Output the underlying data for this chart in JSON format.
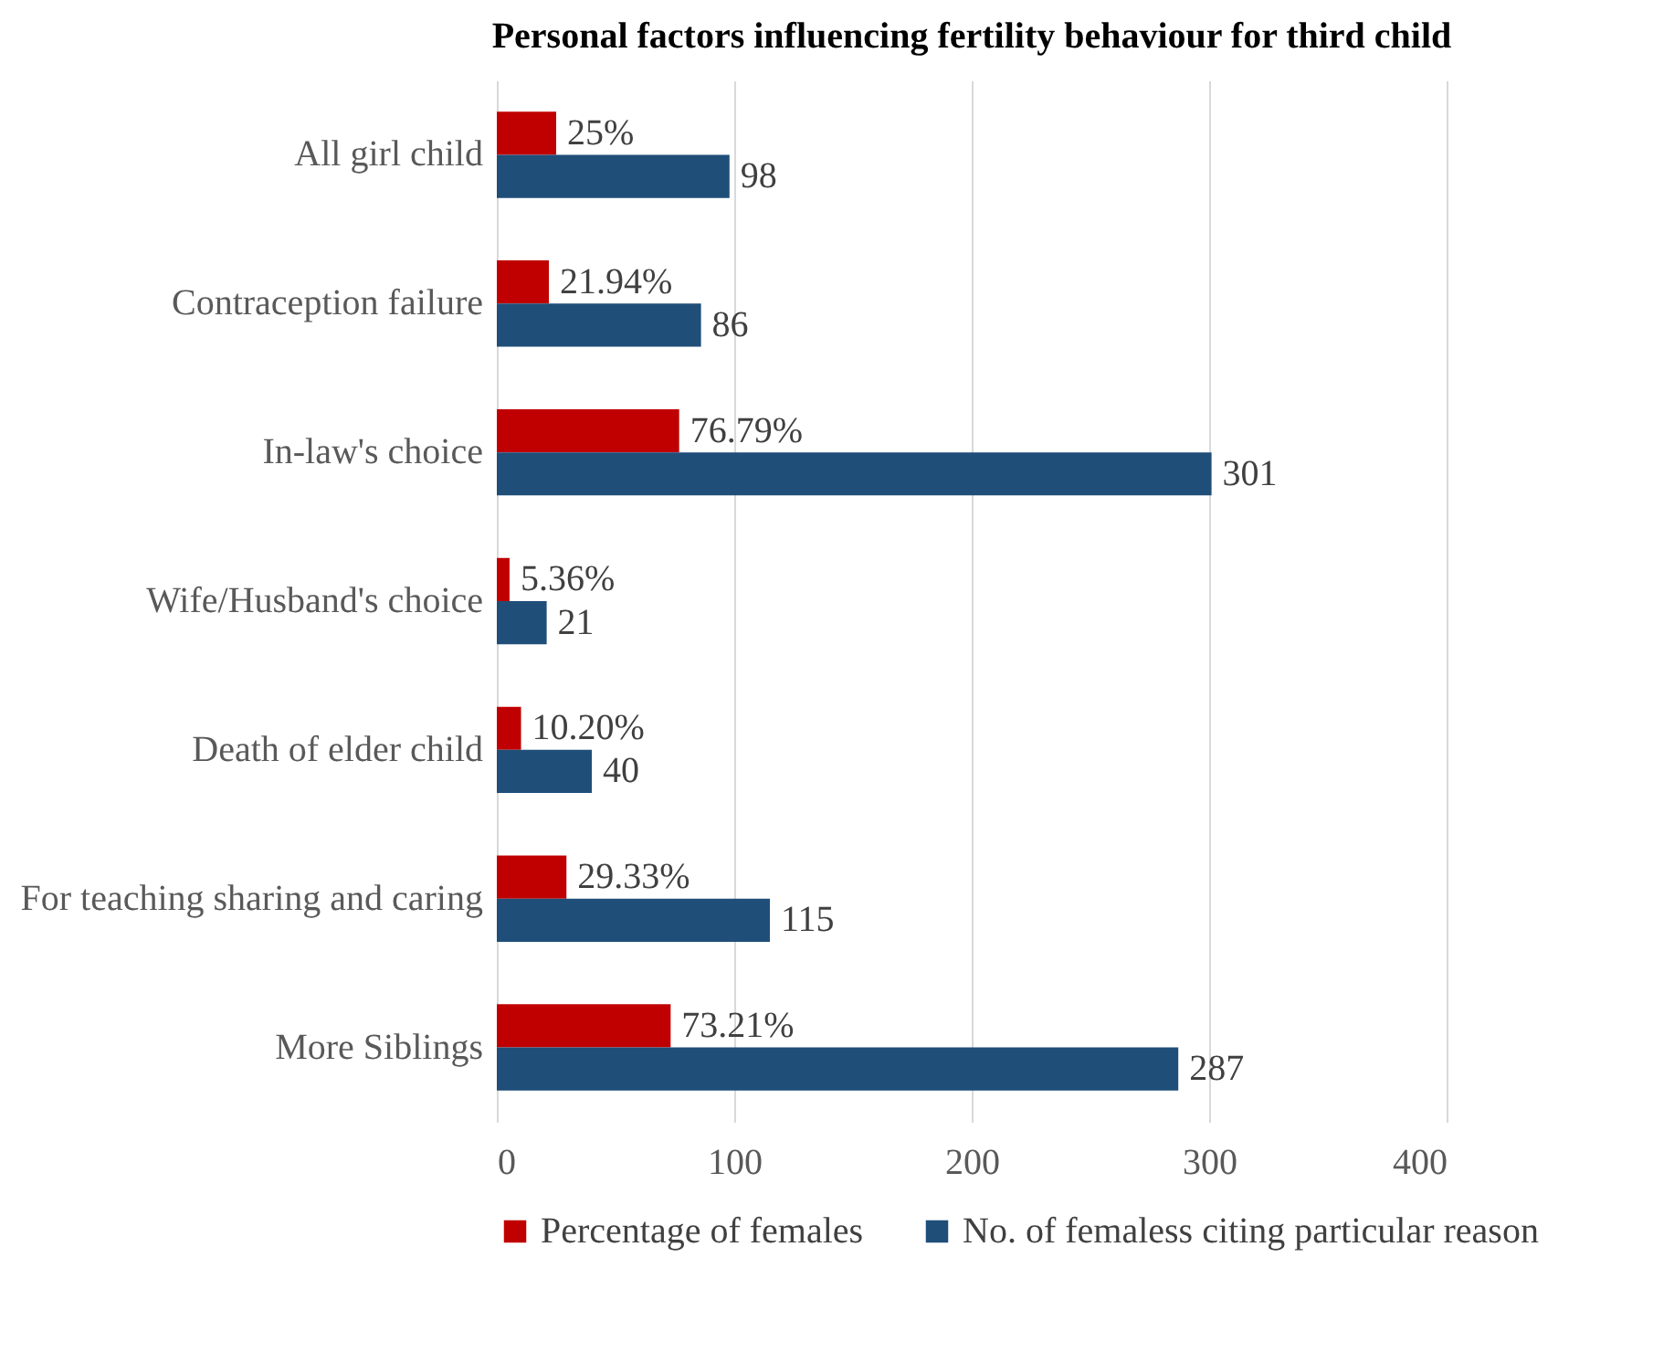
{
  "chart_data": {
    "type": "bar",
    "orientation": "horizontal",
    "title": "Personal factors influencing fertility behaviour for third child",
    "categories": [
      "All girl child",
      "Contraception failure",
      "In-law's choice",
      "Wife/Husband's choice",
      "Death of elder child",
      "For teaching sharing and caring",
      "More Siblings"
    ],
    "series": [
      {
        "name": "Percentage of females",
        "color": "#c00000",
        "values": [
          25,
          21.94,
          76.79,
          5.36,
          10.2,
          29.33,
          73.21
        ],
        "value_labels": [
          "25%",
          "21.94%",
          "76.79%",
          "5.36%",
          "10.20%",
          "29.33%",
          "73.21%"
        ]
      },
      {
        "name": "No. of femaless citing particular reason",
        "color": "#1f4e79",
        "values": [
          98,
          86,
          301,
          21,
          40,
          115,
          287
        ],
        "value_labels": [
          "98",
          "86",
          "301",
          "21",
          "40",
          "115",
          "287"
        ]
      }
    ],
    "xlim": [
      0,
      400
    ],
    "xticks": [
      0,
      100,
      200,
      300,
      400
    ],
    "grid": "x",
    "legend": "bottom"
  }
}
